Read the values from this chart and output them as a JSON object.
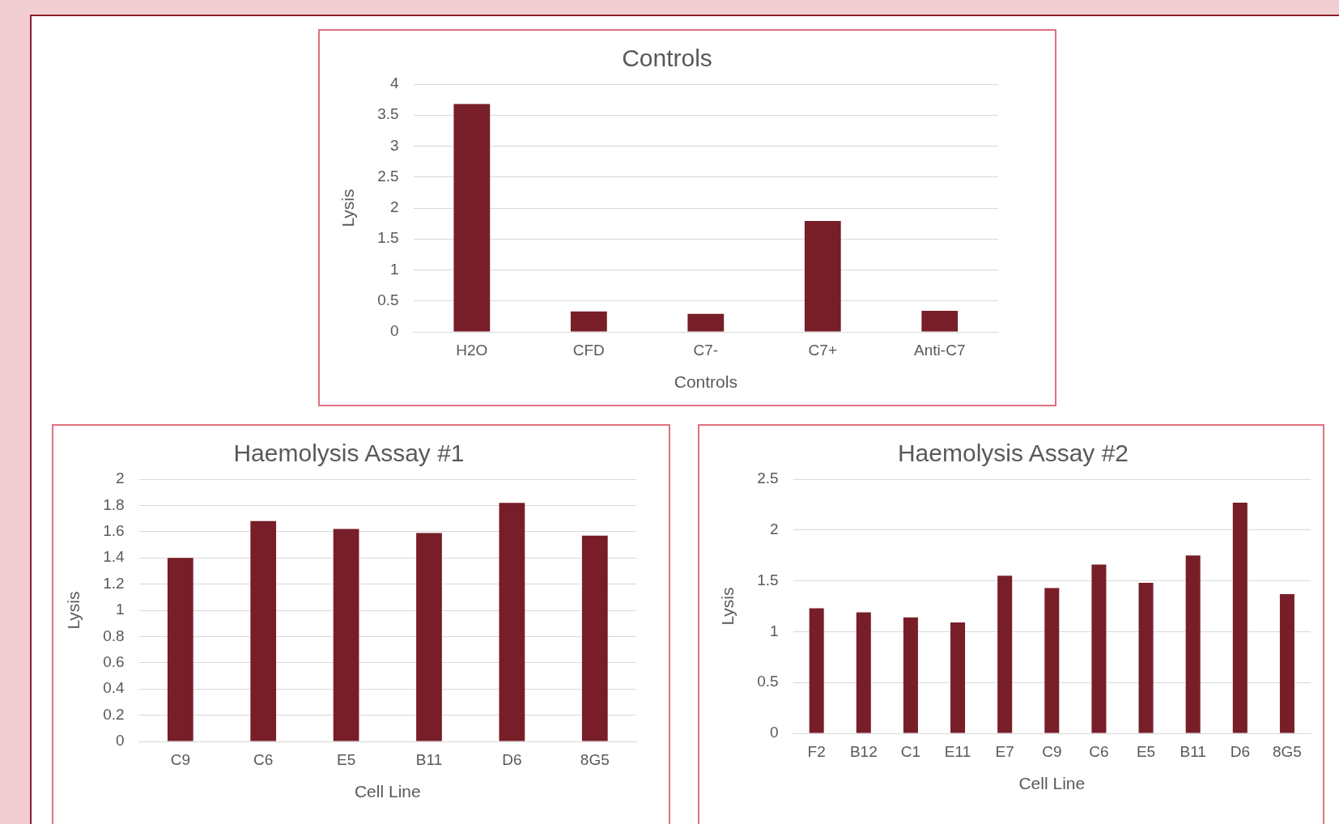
{
  "chart_data": [
    {
      "type": "bar",
      "title": "Controls",
      "xlabel": "Controls",
      "ylabel": "Lysis",
      "categories": [
        "H2O",
        "CFD",
        "C7-",
        "C7+",
        "Anti-C7"
      ],
      "values": [
        3.68,
        0.33,
        0.29,
        1.79,
        0.34
      ],
      "color": "#771e28",
      "ylim": [
        0,
        4
      ],
      "yticks": [
        0,
        0.5,
        1,
        1.5,
        2,
        2.5,
        3,
        3.5,
        4
      ],
      "grid": "y"
    },
    {
      "type": "bar",
      "title": "Haemolysis Assay #1",
      "xlabel": "Cell Line",
      "ylabel": "Lysis",
      "categories": [
        "C9",
        "C6",
        "E5",
        "B11",
        "D6",
        "8G5"
      ],
      "values": [
        1.4,
        1.68,
        1.62,
        1.59,
        1.82,
        1.57
      ],
      "color": "#771e28",
      "ylim": [
        0,
        2
      ],
      "yticks": [
        0,
        0.2,
        0.4,
        0.6,
        0.8,
        1,
        1.2,
        1.4,
        1.6,
        1.8,
        2
      ],
      "grid": "y"
    },
    {
      "type": "bar",
      "title": "Haemolysis Assay #2",
      "xlabel": "Cell Line",
      "ylabel": "Lysis",
      "categories": [
        "F2",
        "B12",
        "C1",
        "E11",
        "E7",
        "C9",
        "C6",
        "E5",
        "B11",
        "D6",
        "8G5"
      ],
      "values": [
        1.23,
        1.19,
        1.14,
        1.09,
        1.55,
        1.43,
        1.66,
        1.48,
        1.75,
        2.27,
        1.37
      ],
      "color": "#771e28",
      "ylim": [
        0,
        2.5
      ],
      "yticks": [
        0,
        0.5,
        1,
        1.5,
        2,
        2.5
      ],
      "grid": "y"
    }
  ]
}
